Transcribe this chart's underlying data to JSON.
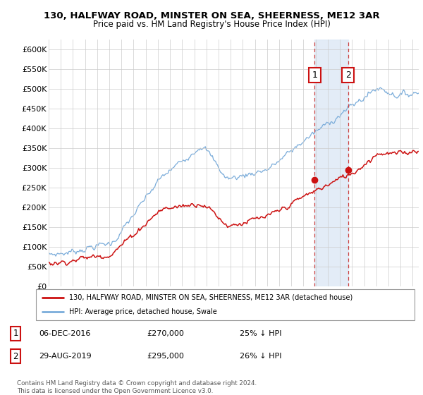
{
  "title1": "130, HALFWAY ROAD, MINSTER ON SEA, SHEERNESS, ME12 3AR",
  "title2": "Price paid vs. HM Land Registry's House Price Index (HPI)",
  "ylim": [
    0,
    625000
  ],
  "yticks": [
    0,
    50000,
    100000,
    150000,
    200000,
    250000,
    300000,
    350000,
    400000,
    450000,
    500000,
    550000,
    600000
  ],
  "ytick_labels": [
    "£0",
    "£50K",
    "£100K",
    "£150K",
    "£200K",
    "£250K",
    "£300K",
    "£350K",
    "£400K",
    "£450K",
    "£500K",
    "£550K",
    "£600K"
  ],
  "xlim_start": 1995.0,
  "xlim_end": 2025.5,
  "hpi_color": "#7aacda",
  "price_color": "#cc1111",
  "point1_x": 2016.92,
  "point1_y": 270000,
  "point2_x": 2019.67,
  "point2_y": 295000,
  "vline1_x": 2016.92,
  "vline2_x": 2019.67,
  "shade_color": "#dce8f5",
  "legend_line1": "130, HALFWAY ROAD, MINSTER ON SEA, SHEERNESS, ME12 3AR (detached house)",
  "legend_line2": "HPI: Average price, detached house, Swale",
  "footnote1": "Contains HM Land Registry data © Crown copyright and database right 2024.",
  "footnote2": "This data is licensed under the Open Government Licence v3.0.",
  "annotation1_label": "1",
  "annotation2_label": "2"
}
